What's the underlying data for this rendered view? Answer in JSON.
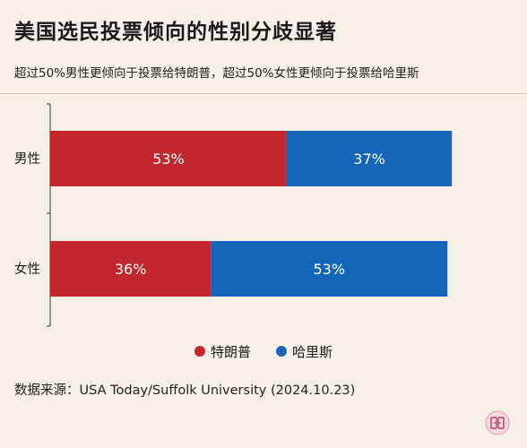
{
  "title": "美国选民投票倾向的性别分歧显著",
  "subtitle": "超过50%男性更倾向于投票给特朗普，超过50%女性更倾向于投票给哈里斯",
  "source": "数据来源：USA Today/Suffolk University (2024.10.23)",
  "chart_data": {
    "type": "bar",
    "orientation": "horizontal",
    "stacked": true,
    "categories": [
      "男性",
      "女性"
    ],
    "series": [
      {
        "name": "特朗普",
        "values": [
          53,
          36
        ],
        "color": "#c1272d",
        "labels": [
          "53%",
          "36%"
        ]
      },
      {
        "name": "哈里斯",
        "values": [
          37,
          53
        ],
        "color": "#1565b8",
        "labels": [
          "37%",
          "53%"
        ]
      }
    ],
    "xlim": [
      0,
      100
    ],
    "legend": "bottom-center",
    "grid": false
  }
}
